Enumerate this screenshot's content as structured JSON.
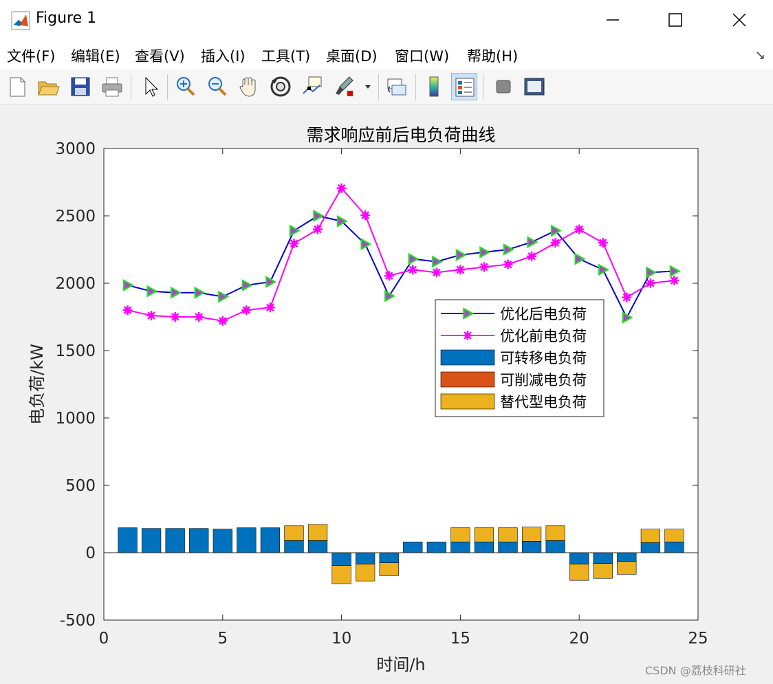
{
  "window": {
    "title": "Figure 1",
    "app_icon": "matlab-icon",
    "controls": [
      "minimize-icon",
      "maximize-icon",
      "close-icon"
    ]
  },
  "menu": {
    "items": [
      "文件(F)",
      "编辑(E)",
      "查看(V)",
      "插入(I)",
      "工具(T)",
      "桌面(D)",
      "窗口(W)",
      "帮助(H)"
    ],
    "overflow_icon": "dock-arrow-icon"
  },
  "toolbar": {
    "tools": [
      "new-figure-icon",
      "open-file-icon",
      "save-icon",
      "print-icon",
      "pointer-icon",
      "zoom-in-icon",
      "zoom-out-icon",
      "pan-icon",
      "rotate-3d-icon",
      "data-cursor-icon",
      "brush-icon",
      "link-plot-icon",
      "colorbar-icon",
      "legend-icon",
      "hide-tools-icon",
      "show-tools-icon"
    ]
  },
  "watermark": "CSDN @荔枝科研社",
  "chart_data": {
    "type": "bar",
    "title": "需求响应前后电负荷曲线",
    "xlabel": "时间/h",
    "ylabel": "电负荷/kW",
    "xlim": [
      0,
      25
    ],
    "ylim": [
      -500,
      3000
    ],
    "xticks": [
      "0",
      "5",
      "10",
      "15",
      "20",
      "25"
    ],
    "yticks": [
      "-500",
      "0",
      "500",
      "1000",
      "1500",
      "2000",
      "2500",
      "3000"
    ],
    "grid": false,
    "legend_position": "center-right",
    "x": [
      1,
      2,
      3,
      4,
      5,
      6,
      7,
      8,
      9,
      10,
      11,
      12,
      13,
      14,
      15,
      16,
      17,
      18,
      19,
      20,
      21,
      22,
      23,
      24
    ],
    "bar_series": [
      {
        "name": "可转移电负荷",
        "color": "#0072BD",
        "values": [
          185,
          180,
          180,
          180,
          175,
          185,
          185,
          90,
          90,
          -95,
          -85,
          -75,
          80,
          80,
          80,
          80,
          80,
          85,
          90,
          -85,
          -80,
          -65,
          75,
          80
        ]
      },
      {
        "name": "可削减电负荷",
        "color": "#D95319",
        "values": [
          0,
          0,
          0,
          0,
          0,
          0,
          0,
          0,
          0,
          0,
          0,
          0,
          0,
          0,
          0,
          0,
          0,
          0,
          0,
          0,
          0,
          0,
          0,
          0
        ]
      },
      {
        "name": "替代型电负荷",
        "color": "#EDB120",
        "values": [
          0,
          0,
          0,
          0,
          0,
          0,
          0,
          110,
          120,
          -135,
          -125,
          -95,
          0,
          0,
          105,
          105,
          105,
          105,
          110,
          -120,
          -110,
          -95,
          100,
          95
        ]
      }
    ],
    "line_series": [
      {
        "name": "优化后电负荷",
        "color": "#0000CD",
        "marker": "triangle-right",
        "marker_edge": "#22DD22",
        "marker_face": "#B040D0",
        "values": [
          1985,
          1940,
          1930,
          1930,
          1900,
          1985,
          2010,
          2390,
          2500,
          2460,
          2290,
          1905,
          2180,
          2160,
          2210,
          2230,
          2250,
          2305,
          2390,
          2180,
          2100,
          1745,
          2080,
          2090
        ]
      },
      {
        "name": "优化前电负荷",
        "color": "#FF00FF",
        "marker": "asterisk",
        "values": [
          1800,
          1760,
          1750,
          1750,
          1720,
          1800,
          1820,
          2295,
          2400,
          2705,
          2505,
          2055,
          2100,
          2080,
          2100,
          2120,
          2140,
          2200,
          2300,
          2400,
          2300,
          1895,
          2000,
          2020
        ]
      }
    ]
  }
}
